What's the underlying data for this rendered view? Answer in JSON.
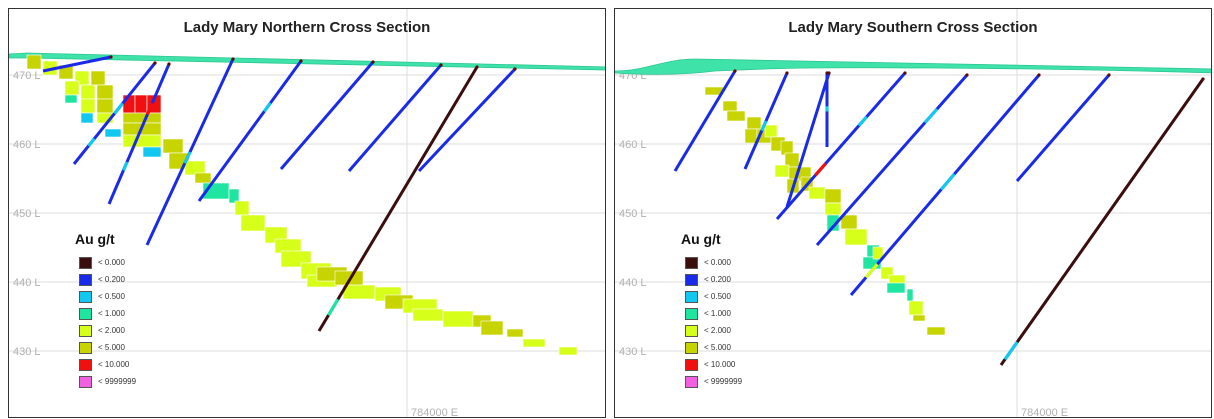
{
  "colors": {
    "grid": "#dcdcdc",
    "grid_label": "#b0b0b0",
    "surface": "#3fe3aa",
    "surface_dark": "#2cc793"
  },
  "legend": {
    "title": "Au g/t",
    "items": [
      {
        "label": "< 0.000",
        "color": "#3b0d0d"
      },
      {
        "label": "< 0.200",
        "color": "#1a2be8"
      },
      {
        "label": "< 0.500",
        "color": "#12c8f0"
      },
      {
        "label": "< 1.000",
        "color": "#1ee6a0"
      },
      {
        "label": "< 2.000",
        "color": "#d6ff1a"
      },
      {
        "label": "< 5.000",
        "color": "#c8d400"
      },
      {
        "label": "< 10.000",
        "color": "#f01010"
      },
      {
        "label": "< 9999999",
        "color": "#f060e0"
      }
    ]
  },
  "panels": [
    {
      "title": "Lady Mary Northern Cross Section",
      "y_labels": [
        "470 L",
        "460 L",
        "450 L",
        "440 L",
        "430 L"
      ],
      "easting_label": "784000 E"
    },
    {
      "title": "Lady Mary Southern Cross Section",
      "y_labels": [
        "470 L",
        "460 L",
        "450 L",
        "440 L",
        "430 L"
      ],
      "easting_label": "784000 E"
    }
  ]
}
